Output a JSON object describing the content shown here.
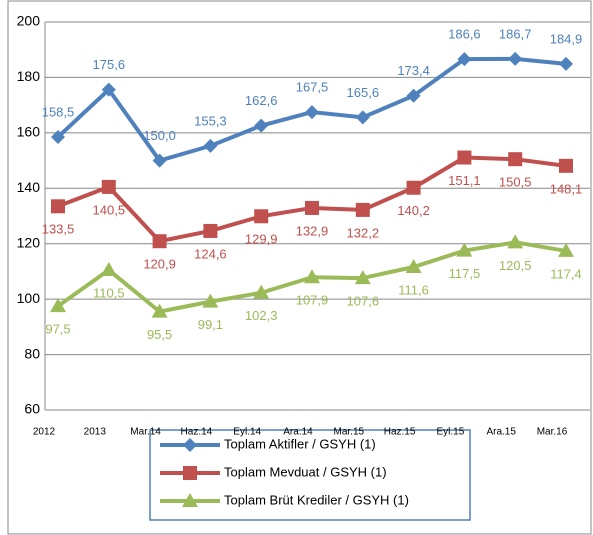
{
  "chart_data": {
    "type": "line",
    "categories": [
      "2012",
      "2013",
      "Mar.14",
      "Haz.14",
      "Eyl.14",
      "Ara.14",
      "Mar.15",
      "Haz.15",
      "Eyl.15",
      "Ara.15",
      "Mar.16"
    ],
    "series": [
      {
        "name": "Toplam Aktifler / GSYH (1)",
        "color": "#4f81bd",
        "marker": "diamond",
        "values": [
          158.5,
          175.6,
          150.0,
          155.3,
          162.6,
          167.5,
          165.6,
          173.4,
          186.6,
          186.7,
          184.9
        ],
        "value_labels": [
          "158,5",
          "175,6",
          "150,0",
          "155,3",
          "162,6",
          "167,5",
          "165,6",
          "173,4",
          "186,6",
          "186,7",
          "184,9"
        ]
      },
      {
        "name": "Toplam Mevduat / GSYH (1)",
        "color": "#c0504d",
        "marker": "square",
        "values": [
          133.5,
          140.5,
          120.9,
          124.6,
          129.9,
          132.9,
          132.2,
          140.2,
          151.1,
          150.5,
          148.1
        ],
        "value_labels": [
          "133,5",
          "140,5",
          "120,9",
          "124,6",
          "129,9",
          "132,9",
          "132,2",
          "140,2",
          "151,1",
          "150,5",
          "148,1"
        ]
      },
      {
        "name": "Toplam Brüt Krediler / GSYH (1)",
        "color": "#9bbb59",
        "marker": "triangle",
        "values": [
          97.5,
          110.5,
          95.5,
          99.1,
          102.3,
          107.9,
          107.6,
          111.6,
          117.5,
          120.5,
          117.4
        ],
        "value_labels": [
          "97,5",
          "110,5",
          "95,5",
          "99,1",
          "102,3",
          "107,9",
          "107,6",
          "111,6",
          "117,5",
          "120,5",
          "117,4"
        ]
      }
    ],
    "ylim": [
      60,
      200
    ],
    "yticks": [
      60,
      80,
      100,
      120,
      140,
      160,
      180,
      200
    ],
    "grid": true,
    "legend": "bottom"
  }
}
